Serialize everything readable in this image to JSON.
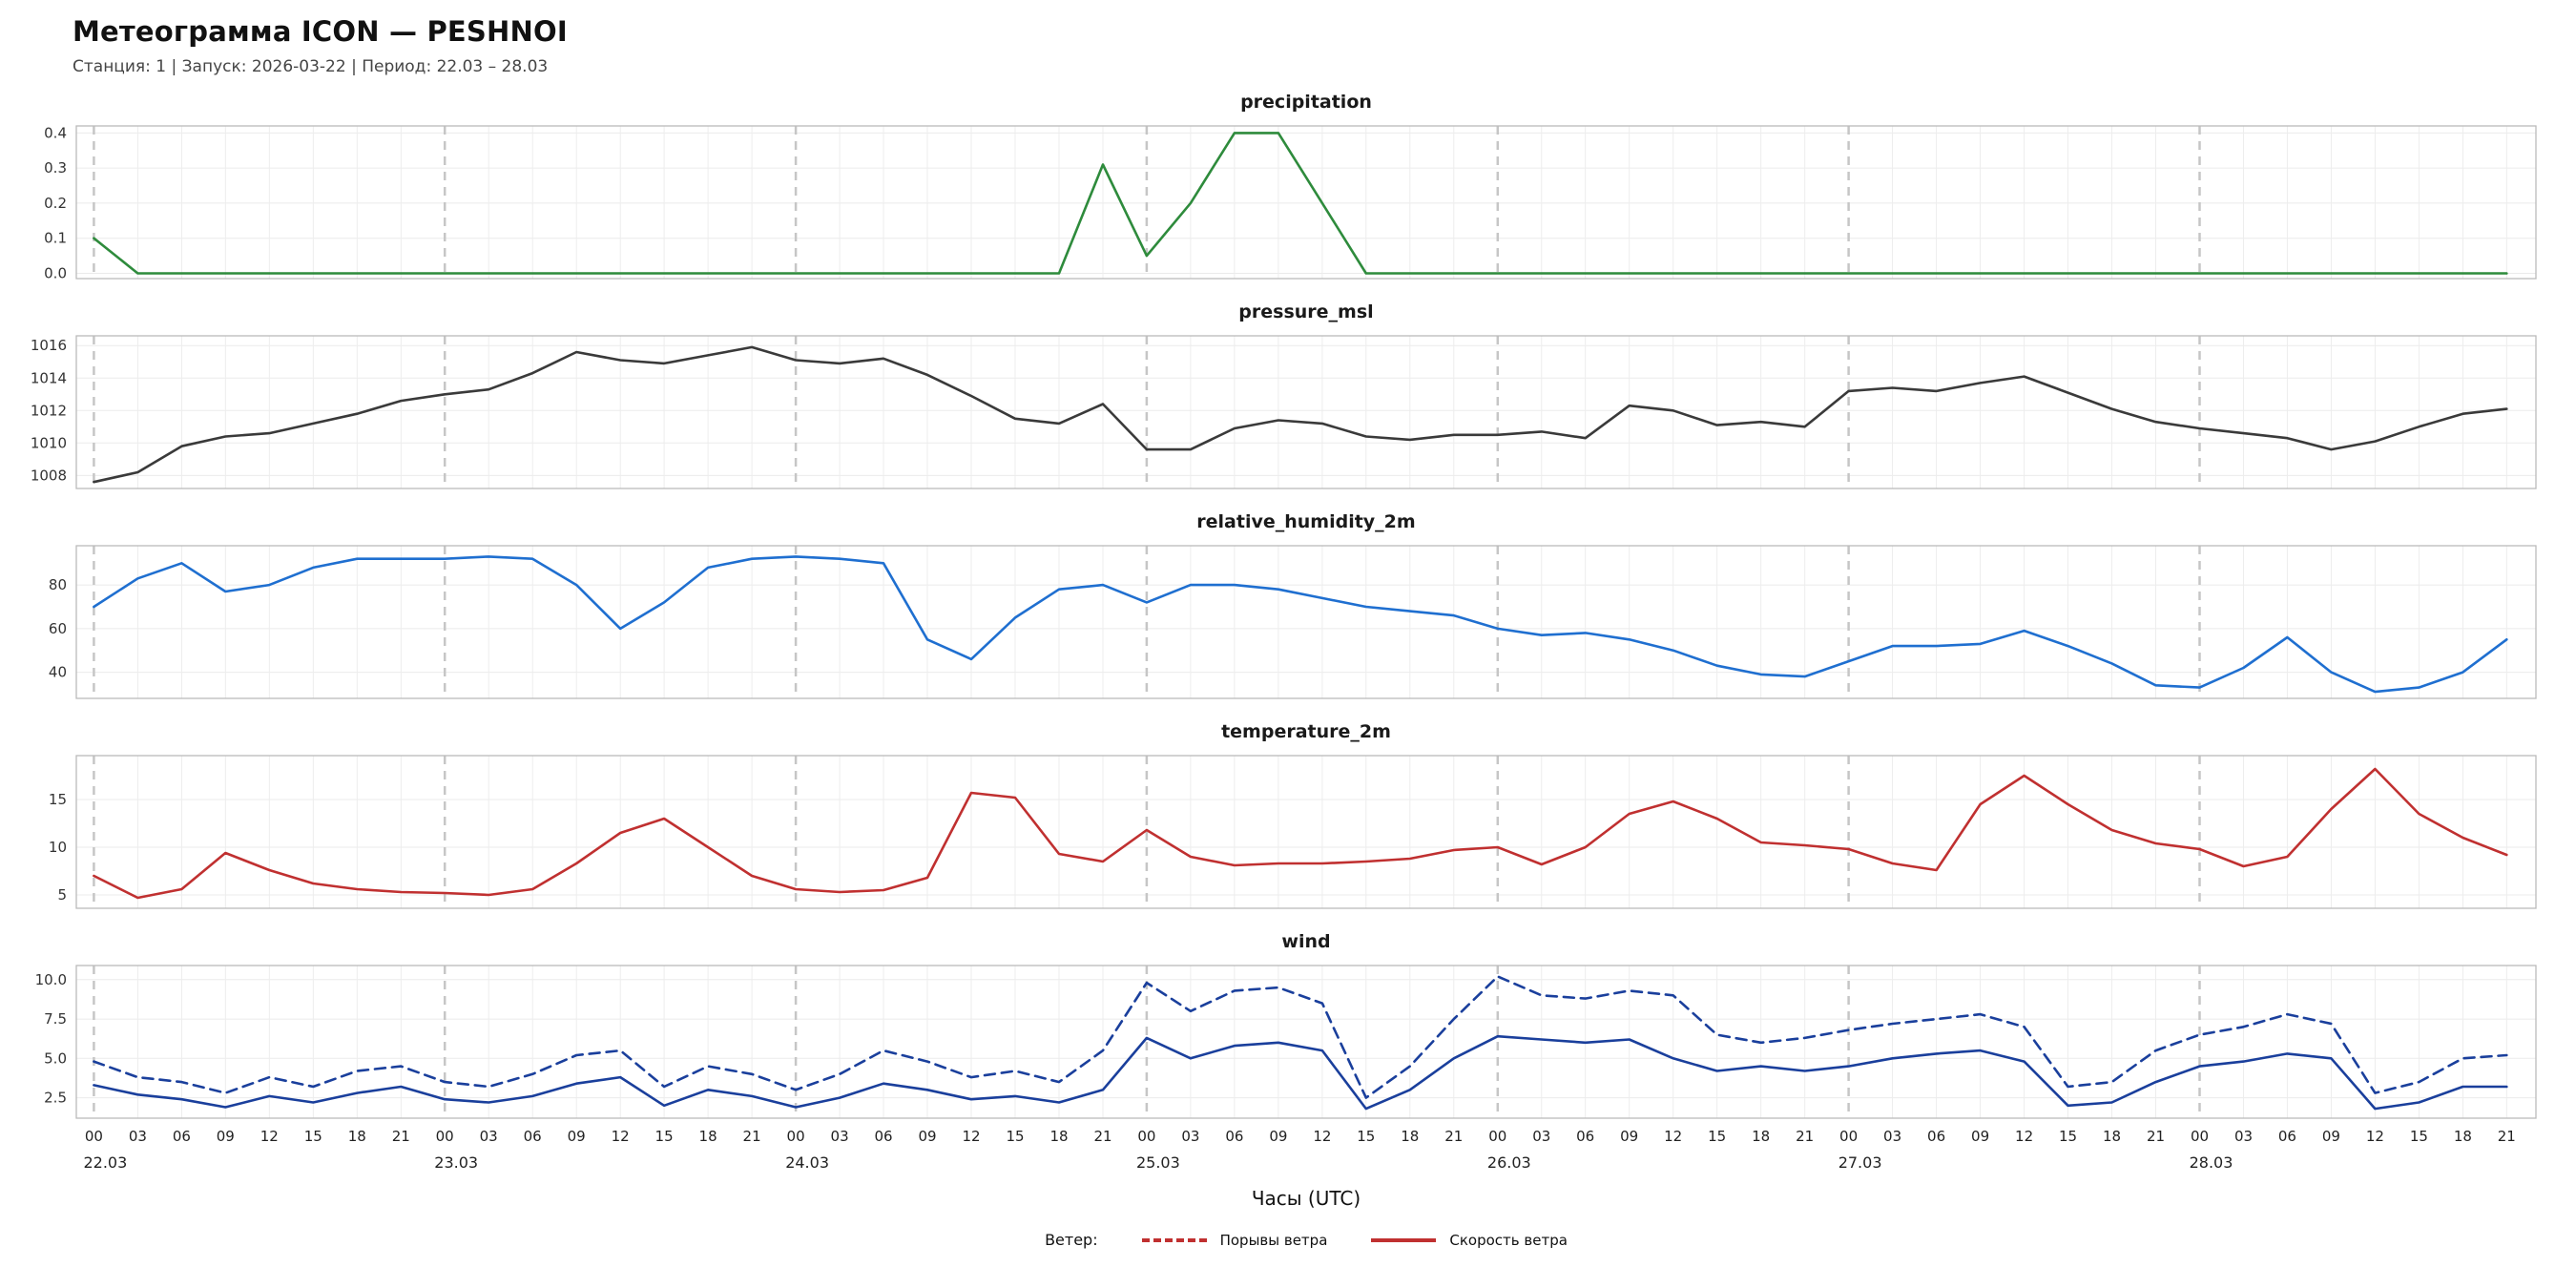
{
  "header": {
    "title": "Метеограмма ICON — PESHNOI",
    "subtitle": "Станция: 1  | Запуск: 2026-03-22  | Период: 22.03 – 28.03"
  },
  "x_axis": {
    "xlabel": "Часы (UTC)",
    "xlim": [
      -1.2,
      167
    ],
    "tick_start": 0,
    "tick_end": 165,
    "tick_step": 3,
    "hour_labels": [
      "00",
      "03",
      "06",
      "09",
      "12",
      "15",
      "18",
      "21"
    ],
    "day_labels": [
      "22.03",
      "23.03",
      "24.03",
      "25.03",
      "26.03",
      "27.03",
      "28.03"
    ]
  },
  "legend": {
    "prefix": "Ветер:",
    "items": [
      {
        "label": "Порывы ветра",
        "style": "dashed",
        "color": "#c03030"
      },
      {
        "label": "Скорость ветра",
        "style": "solid",
        "color": "#c03030"
      }
    ]
  },
  "chart_data": [
    {
      "type": "line",
      "title": "precipitation",
      "color": "#2e8b3c",
      "ylim": [
        -0.015,
        0.42
      ],
      "yticks": [
        0.0,
        0.1,
        0.2,
        0.3,
        0.4
      ],
      "ytick_labels": [
        "0.0",
        "0.1",
        "0.2",
        "0.3",
        "0.4"
      ],
      "values": [
        0.1,
        0,
        0,
        0,
        0,
        0,
        0,
        0,
        0,
        0,
        0,
        0,
        0,
        0,
        0,
        0,
        0,
        0,
        0,
        0,
        0,
        0,
        0,
        0.31,
        0.05,
        0.2,
        0.4,
        0.4,
        0.2,
        0,
        0,
        0,
        0,
        0,
        0,
        0,
        0,
        0,
        0,
        0,
        0,
        0,
        0,
        0,
        0,
        0,
        0,
        0,
        0,
        0,
        0,
        0,
        0,
        0,
        0,
        0
      ]
    },
    {
      "type": "line",
      "title": "pressure_msl",
      "color": "#3a3a3a",
      "ylim": [
        1007.2,
        1016.6
      ],
      "yticks": [
        1008,
        1010,
        1012,
        1014,
        1016
      ],
      "ytick_labels": [
        "1008",
        "1010",
        "1012",
        "1014",
        "1016"
      ],
      "values": [
        1007.6,
        1008.2,
        1009.8,
        1010.4,
        1010.6,
        1011.2,
        1011.8,
        1012.6,
        1013.0,
        1013.3,
        1014.3,
        1015.6,
        1015.1,
        1014.9,
        1015.4,
        1015.9,
        1015.1,
        1014.9,
        1015.2,
        1014.2,
        1012.9,
        1011.5,
        1011.2,
        1012.4,
        1009.6,
        1009.6,
        1010.9,
        1011.4,
        1011.2,
        1010.4,
        1010.2,
        1010.5,
        1010.5,
        1010.7,
        1010.3,
        1012.3,
        1012.0,
        1011.1,
        1011.3,
        1011.0,
        1013.2,
        1013.4,
        1013.2,
        1013.7,
        1014.1,
        1013.1,
        1012.1,
        1011.3,
        1010.9,
        1010.6,
        1010.3,
        1009.6,
        1010.1,
        1011.0,
        1011.8,
        1012.1
      ]
    },
    {
      "type": "line",
      "title": "relative_humidity_2m",
      "color": "#1f6fd0",
      "ylim": [
        28,
        98
      ],
      "yticks": [
        40,
        60,
        80
      ],
      "ytick_labels": [
        "40",
        "60",
        "80"
      ],
      "values": [
        70,
        83,
        90,
        77,
        80,
        88,
        92,
        92,
        92,
        93,
        92,
        80,
        60,
        72,
        88,
        92,
        93,
        92,
        90,
        55,
        46,
        65,
        78,
        80,
        72,
        80,
        80,
        78,
        74,
        70,
        68,
        66,
        60,
        57,
        58,
        55,
        50,
        43,
        39,
        38,
        45,
        52,
        52,
        53,
        59,
        52,
        44,
        34,
        33,
        42,
        56,
        40,
        31,
        33,
        40,
        55
      ]
    },
    {
      "type": "line",
      "title": "temperature_2m",
      "color": "#c03030",
      "ylim": [
        3.6,
        19.6
      ],
      "yticks": [
        5,
        10,
        15
      ],
      "ytick_labels": [
        "5",
        "10",
        "15"
      ],
      "values": [
        7.0,
        4.7,
        5.6,
        9.4,
        7.6,
        6.2,
        5.6,
        5.3,
        5.2,
        5.0,
        5.6,
        8.3,
        11.5,
        13.0,
        10.0,
        7.0,
        5.6,
        5.3,
        5.5,
        6.8,
        15.7,
        15.2,
        9.3,
        8.5,
        11.8,
        9.0,
        8.1,
        8.3,
        8.3,
        8.5,
        8.8,
        9.7,
        10.0,
        8.2,
        10.0,
        13.5,
        14.8,
        13.0,
        10.5,
        10.2,
        9.8,
        8.3,
        7.6,
        14.5,
        17.5,
        14.5,
        11.8,
        10.4,
        9.8,
        8.0,
        9.0,
        14.0,
        18.2,
        13.5,
        11.0,
        9.2
      ]
    },
    {
      "type": "line",
      "title": "wind",
      "color": "#1a3f9c",
      "ylim": [
        1.2,
        10.9
      ],
      "yticks": [
        2.5,
        5.0,
        7.5,
        10.0
      ],
      "ytick_labels": [
        "2.5",
        "5.0",
        "7.5",
        "10.0"
      ],
      "series": [
        {
          "name": "Порывы ветра",
          "style": "dashed",
          "values": [
            4.8,
            3.8,
            3.5,
            2.8,
            3.8,
            3.2,
            4.2,
            4.5,
            3.5,
            3.2,
            4.0,
            5.2,
            5.5,
            3.2,
            4.5,
            4.0,
            3.0,
            4.0,
            5.5,
            4.8,
            3.8,
            4.2,
            3.5,
            5.5,
            9.8,
            8.0,
            9.3,
            9.5,
            8.5,
            2.5,
            4.5,
            7.5,
            10.2,
            9.0,
            8.8,
            9.3,
            9.0,
            6.5,
            6.0,
            6.3,
            6.8,
            7.2,
            7.5,
            7.8,
            7.0,
            3.2,
            3.5,
            5.5,
            6.5,
            7.0,
            7.8,
            7.2,
            2.8,
            3.5,
            5.0,
            5.2
          ]
        },
        {
          "name": "Скорость ветра",
          "style": "solid",
          "values": [
            3.3,
            2.7,
            2.4,
            1.9,
            2.6,
            2.2,
            2.8,
            3.2,
            2.4,
            2.2,
            2.6,
            3.4,
            3.8,
            2.0,
            3.0,
            2.6,
            1.9,
            2.5,
            3.4,
            3.0,
            2.4,
            2.6,
            2.2,
            3.0,
            6.3,
            5.0,
            5.8,
            6.0,
            5.5,
            1.8,
            3.0,
            5.0,
            6.4,
            6.2,
            6.0,
            6.2,
            5.0,
            4.2,
            4.5,
            4.2,
            4.5,
            5.0,
            5.3,
            5.5,
            4.8,
            2.0,
            2.2,
            3.5,
            4.5,
            4.8,
            5.3,
            5.0,
            1.8,
            2.2,
            3.2,
            3.2
          ]
        }
      ]
    }
  ]
}
